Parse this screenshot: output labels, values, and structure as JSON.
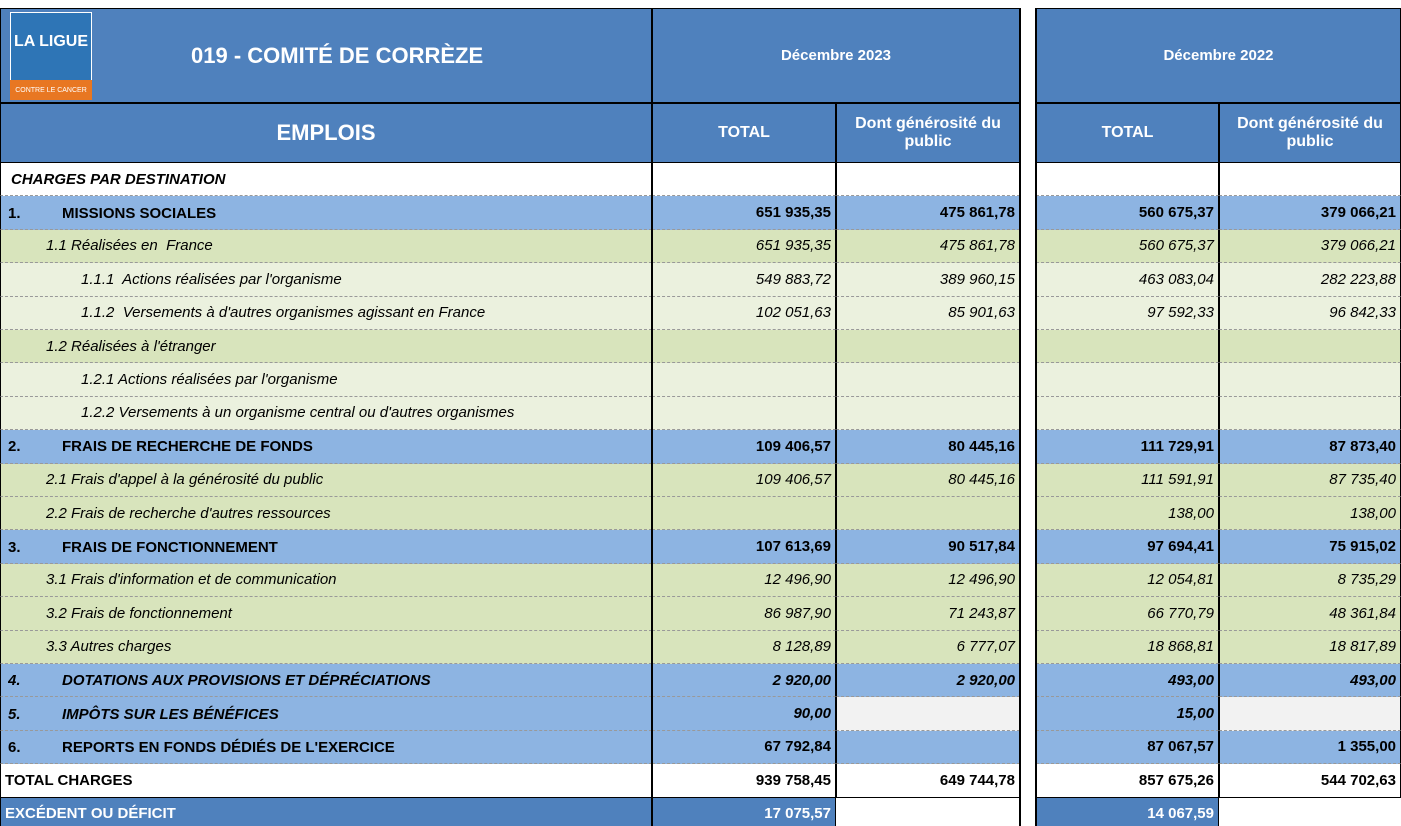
{
  "logo": {
    "line1": "LA LIGUE",
    "line2": "CONTRE LE CANCER"
  },
  "header": {
    "title": "019 - COMITÉ DE CORRÈZE",
    "periods": [
      "Décembre 2023",
      "Décembre 2022"
    ],
    "section": "EMPLOIS",
    "columns": [
      "TOTAL",
      "Dont générosité du public",
      "TOTAL",
      "Dont générosité du public"
    ]
  },
  "table": {
    "rows": [
      {
        "label": "CHARGES PAR DESTINATION",
        "cells": [
          null,
          null,
          null,
          null
        ]
      },
      {
        "number": "1.",
        "label": "MISSIONS SOCIALES",
        "cells": [
          "651 935,35",
          "475 861,78",
          "560 675,37",
          "379 066,21"
        ]
      },
      {
        "label": "1.1 Réalisées en  France",
        "cells": [
          "651 935,35",
          "475 861,78",
          "560 675,37",
          "379 066,21"
        ]
      },
      {
        "label": "1.1.1  Actions réalisées par l'organisme",
        "cells": [
          "549 883,72",
          "389 960,15",
          "463 083,04",
          "282 223,88"
        ]
      },
      {
        "label": "1.1.2  Versements à d'autres organismes agissant en France",
        "cells": [
          "102 051,63",
          "85 901,63",
          "97 592,33",
          "96 842,33"
        ]
      },
      {
        "label": "1.2 Réalisées à l'étranger",
        "cells": [
          null,
          null,
          null,
          null
        ]
      },
      {
        "label": "1.2.1 Actions réalisées par l'organisme",
        "cells": [
          null,
          null,
          null,
          null
        ]
      },
      {
        "label": "1.2.2 Versements à un organisme central ou d'autres organismes",
        "cells": [
          null,
          null,
          null,
          null
        ]
      },
      {
        "number": "2.",
        "label": "FRAIS DE RECHERCHE DE FONDS",
        "cells": [
          "109 406,57",
          "80 445,16",
          "111 729,91",
          "87 873,40"
        ]
      },
      {
        "label": "2.1 Frais d'appel à la générosité du public",
        "cells": [
          "109 406,57",
          "80 445,16",
          "111 591,91",
          "87 735,40"
        ]
      },
      {
        "label": "2.2 Frais de recherche d'autres ressources",
        "cells": [
          null,
          null,
          "138,00",
          "138,00"
        ]
      },
      {
        "number": "3.",
        "label": "FRAIS DE FONCTIONNEMENT",
        "cells": [
          "107 613,69",
          "90 517,84",
          "97 694,41",
          "75 915,02"
        ]
      },
      {
        "label": "3.1 Frais d'information et de communication",
        "cells": [
          "12 496,90",
          "12 496,90",
          "12 054,81",
          "8 735,29"
        ]
      },
      {
        "label": "3.2 Frais de fonctionnement",
        "cells": [
          "86 987,90",
          "71 243,87",
          "66 770,79",
          "48 361,84"
        ]
      },
      {
        "label": "3.3 Autres charges",
        "cells": [
          "8 128,89",
          "6 777,07",
          "18 868,81",
          "18 817,89"
        ]
      },
      {
        "number": "4.",
        "label": "DOTATIONS AUX PROVISIONS ET DÉPRÉCIATIONS",
        "cells": [
          "2 920,00",
          "2 920,00",
          "493,00",
          "493,00"
        ]
      },
      {
        "number": "5.",
        "label": "IMPÔTS SUR LES BÉNÉFICES",
        "cells": [
          "90,00",
          null,
          "15,00",
          null
        ]
      },
      {
        "number": "6.",
        "label": "REPORTS EN FONDS DÉDIÉS DE L'EXERCICE",
        "cells": [
          "67 792,84",
          null,
          "87 067,57",
          "1 355,00"
        ]
      },
      {
        "label": "TOTAL CHARGES",
        "cells": [
          "939 758,45",
          "649 744,78",
          "857 675,26",
          "544 702,63"
        ]
      },
      {
        "label": "EXCÉDENT OU DÉFICIT",
        "cells": [
          "17 075,57",
          null,
          "14 067,59",
          null
        ]
      }
    ]
  }
}
